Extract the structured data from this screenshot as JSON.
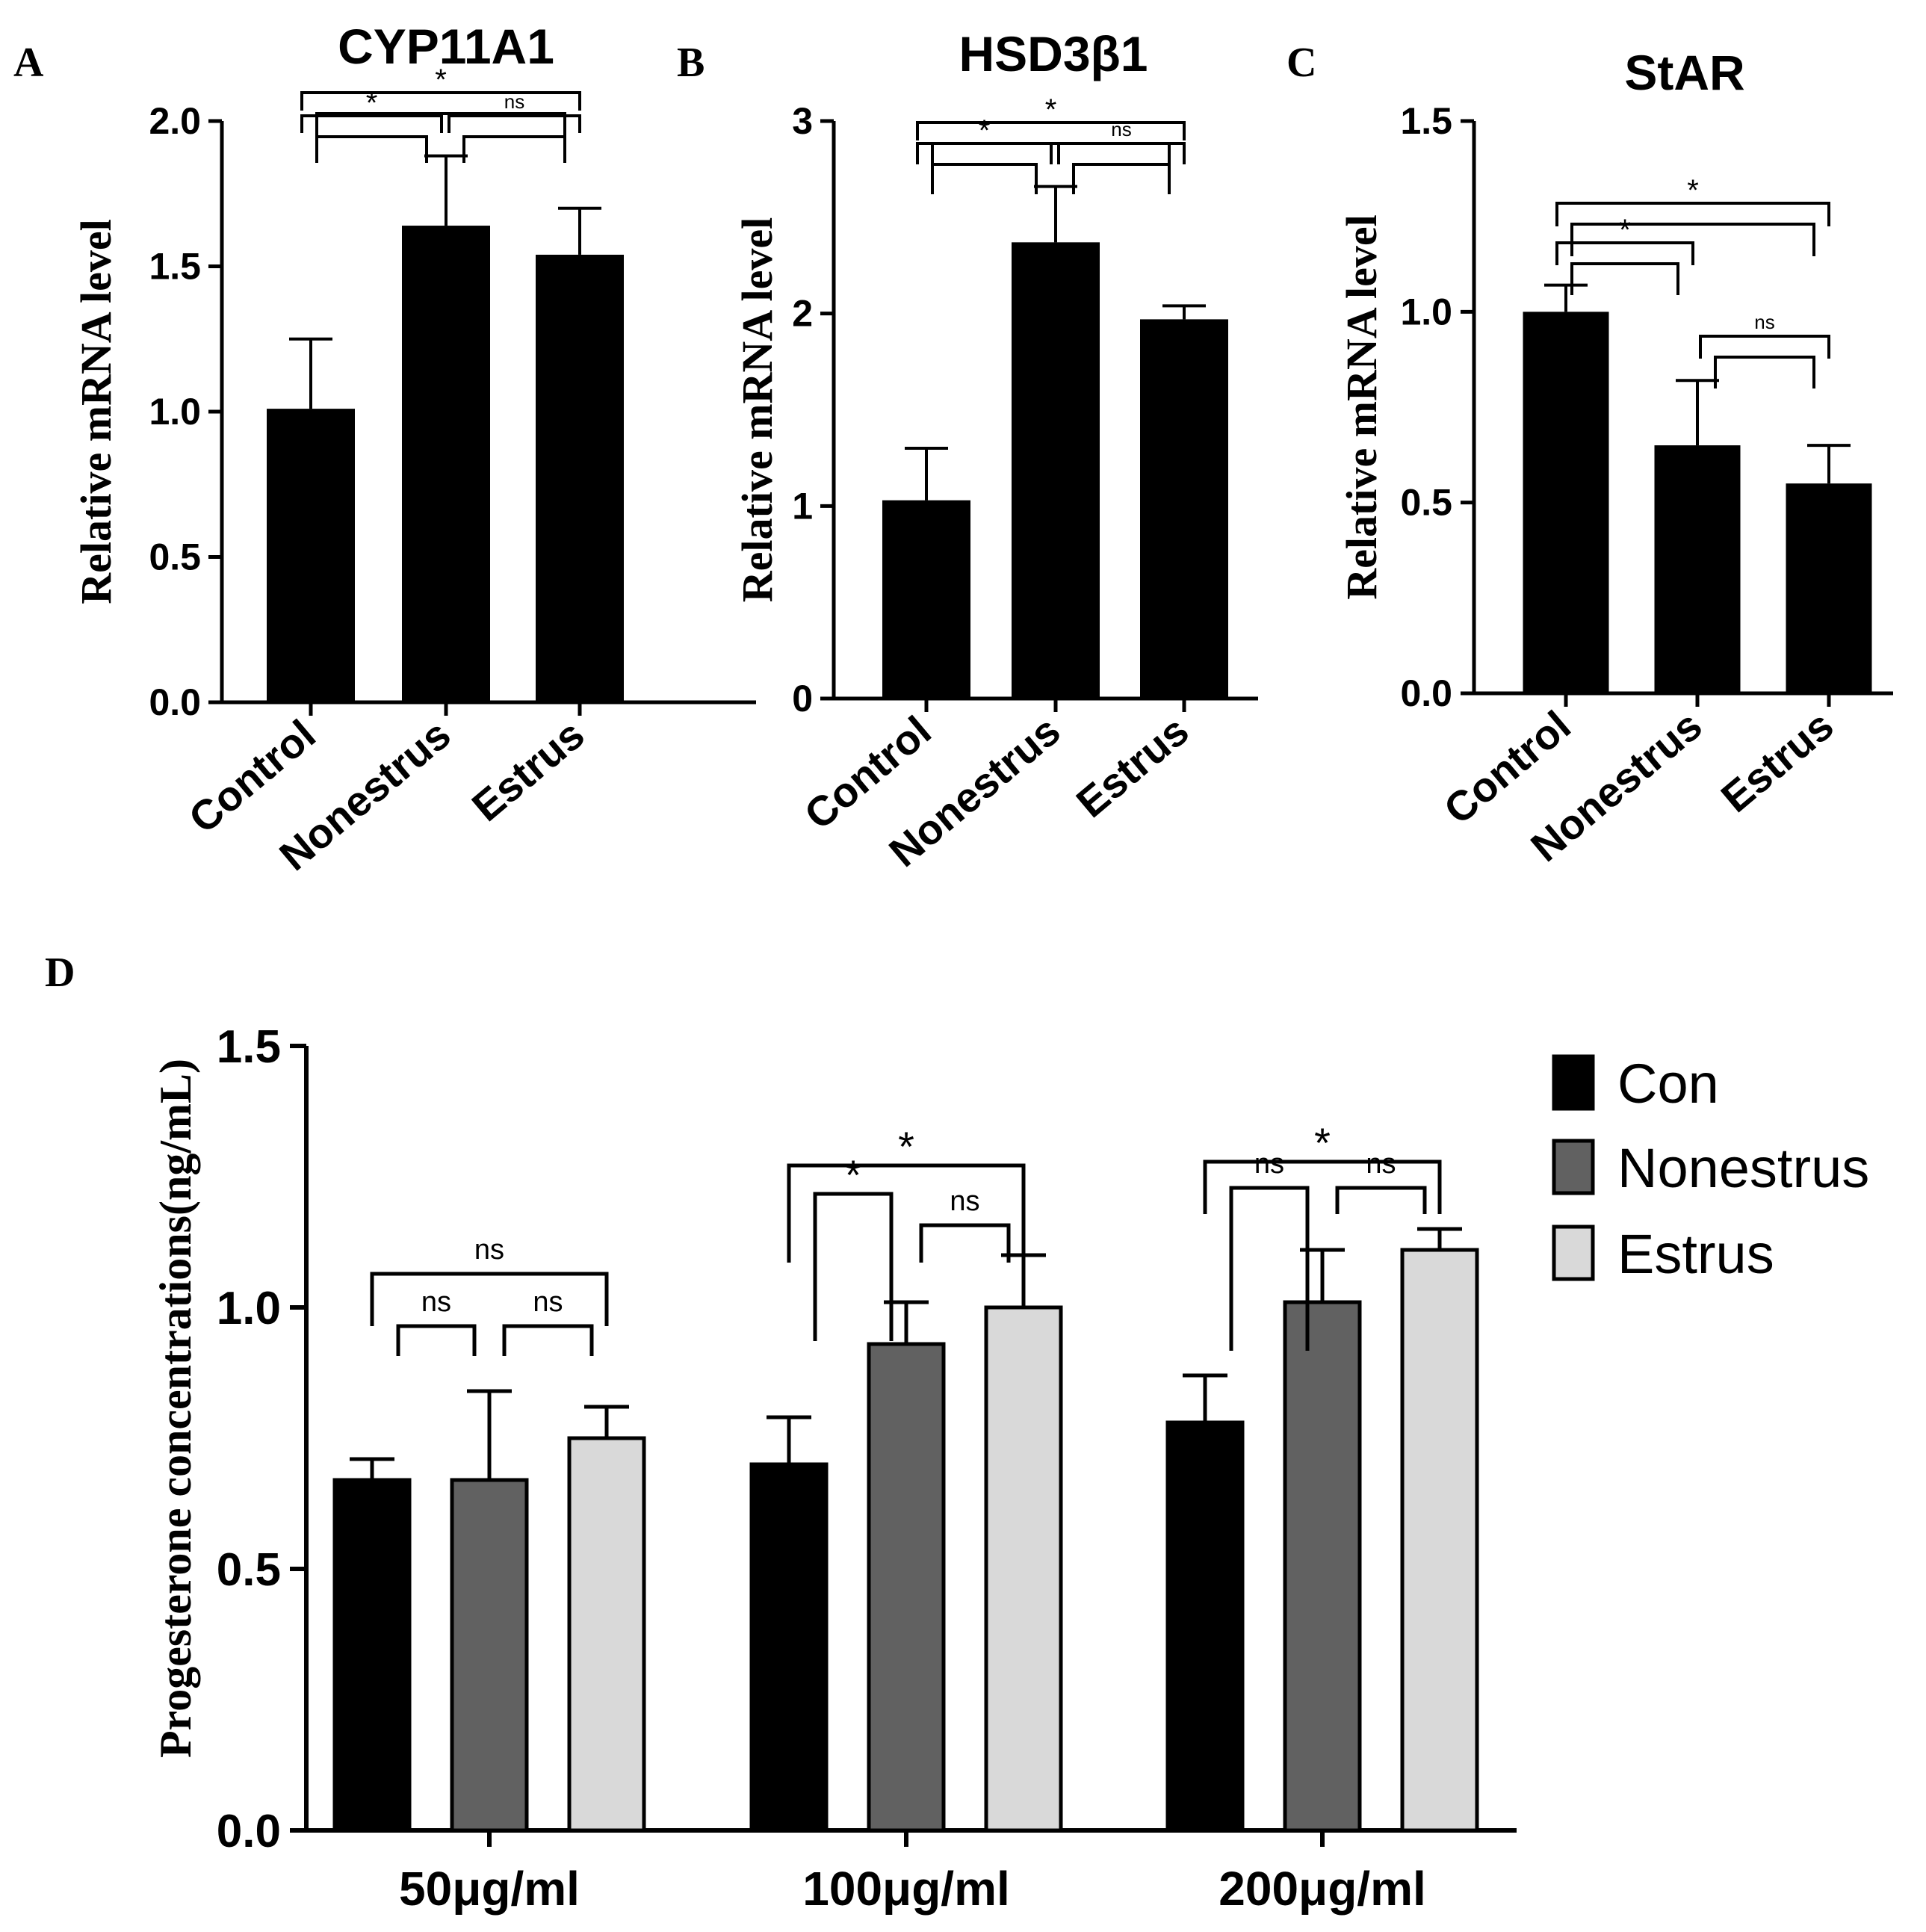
{
  "colors": {
    "black": "#000000",
    "dark_gray": "#616161",
    "light_gray": "#d9d9d9"
  },
  "chart_data": [
    {
      "panel": "A",
      "type": "bar",
      "title": "CYP11A1",
      "ylabel": "Relative mRNA level",
      "categories": [
        "Control",
        "Nonestrus",
        "Estrus"
      ],
      "values": [
        1.01,
        1.64,
        1.54
      ],
      "errors": [
        0.24,
        0.24,
        0.16
      ],
      "ylim": [
        0,
        2.0
      ],
      "yticks": [
        "0.0",
        "0.5",
        "1.0",
        "1.5",
        "2.0"
      ],
      "significance": [
        {
          "from": 0,
          "to": 1,
          "label": "*"
        },
        {
          "from": 1,
          "to": 2,
          "label": "ns"
        },
        {
          "from": 0,
          "to": 2,
          "label": "*"
        }
      ]
    },
    {
      "panel": "B",
      "type": "bar",
      "title": "HSD3β1",
      "ylabel": "Relative mRNA level",
      "categories": [
        "Control",
        "Nonestrus",
        "Estrus"
      ],
      "values": [
        1.03,
        2.37,
        1.97
      ],
      "errors": [
        0.27,
        0.29,
        0.07
      ],
      "ylim": [
        0,
        3
      ],
      "yticks": [
        "0",
        "1",
        "2",
        "3"
      ],
      "significance": [
        {
          "from": 0,
          "to": 1,
          "label": "*"
        },
        {
          "from": 1,
          "to": 2,
          "label": "ns"
        },
        {
          "from": 0,
          "to": 2,
          "label": "*"
        }
      ]
    },
    {
      "panel": "C",
      "type": "bar",
      "title": "StAR",
      "ylabel": "Relative mRNA level",
      "categories": [
        "Control",
        "Nonestrus",
        "Estrus"
      ],
      "values": [
        1.0,
        0.65,
        0.55
      ],
      "errors": [
        0.07,
        0.17,
        0.1
      ],
      "ylim": [
        0,
        1.5
      ],
      "yticks": [
        "0.0",
        "0.5",
        "1.0",
        "1.5"
      ],
      "significance": [
        {
          "from": 0,
          "to": 1,
          "label": "*"
        },
        {
          "from": 1,
          "to": 2,
          "label": "ns"
        },
        {
          "from": 0,
          "to": 2,
          "label": "*"
        }
      ]
    },
    {
      "panel": "D",
      "type": "bar",
      "title": "",
      "ylabel": "Progesterone concentrations(ng/mL)",
      "categories": [
        "50μg/ml",
        "100μg/ml",
        "200μg/ml"
      ],
      "series": [
        {
          "name": "Con",
          "color": "#000000",
          "values": [
            0.67,
            0.7,
            0.78
          ],
          "errors": [
            0.04,
            0.09,
            0.09
          ]
        },
        {
          "name": "Nonestrus",
          "color": "#616161",
          "values": [
            0.67,
            0.93,
            1.01
          ],
          "errors": [
            0.17,
            0.08,
            0.1
          ]
        },
        {
          "name": "Estrus",
          "color": "#d9d9d9",
          "values": [
            0.75,
            1.0,
            1.11
          ],
          "errors": [
            0.06,
            0.1,
            0.04
          ]
        }
      ],
      "ylim": [
        0,
        1.5
      ],
      "yticks": [
        "0.0",
        "0.5",
        "1.0",
        "1.5"
      ],
      "legend_position": "top-right",
      "significance": [
        {
          "group": 0,
          "from": 0,
          "to": 1,
          "label": "ns"
        },
        {
          "group": 0,
          "from": 1,
          "to": 2,
          "label": "ns"
        },
        {
          "group": 0,
          "from": 0,
          "to": 2,
          "label": "ns"
        },
        {
          "group": 1,
          "from": 0,
          "to": 1,
          "label": "*"
        },
        {
          "group": 1,
          "from": 1,
          "to": 2,
          "label": "ns"
        },
        {
          "group": 1,
          "from": 0,
          "to": 2,
          "label": "*"
        },
        {
          "group": 2,
          "from": 0,
          "to": 1,
          "label": "ns"
        },
        {
          "group": 2,
          "from": 1,
          "to": 2,
          "label": "ns"
        },
        {
          "group": 2,
          "from": 0,
          "to": 2,
          "label": "*"
        }
      ]
    }
  ]
}
